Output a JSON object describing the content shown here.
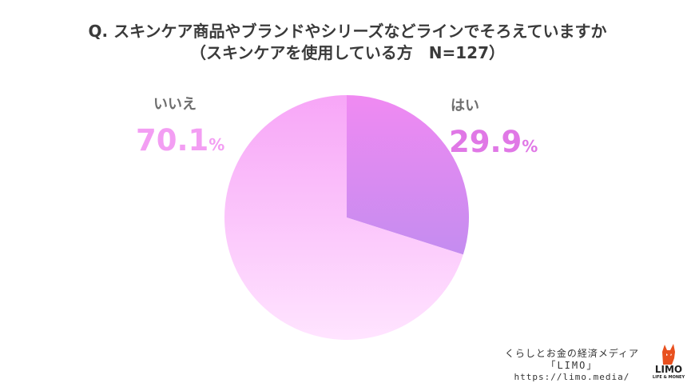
{
  "title": {
    "line1": "Q. スキンケア商品やブランドやシリーズなどラインでそろえていますか",
    "line2": "（スキンケアを使用している方　N=127）"
  },
  "chart_data": {
    "type": "pie",
    "start_angle_deg": 0,
    "direction": "clockwise",
    "slices": [
      {
        "label": "はい",
        "value": 29.9,
        "display": "29.9",
        "unit": "%",
        "color_start": "#f08af2",
        "color_end": "#c48cf0",
        "label_color": "#e078e6"
      },
      {
        "label": "いいえ",
        "value": 70.1,
        "display": "70.1",
        "unit": "%",
        "color_start": "#ffe4ff",
        "color_end": "#f7a6f7",
        "label_color": "#f39ef3"
      }
    ]
  },
  "footer": {
    "line1": "くらしとお金の経済メディア",
    "line2": "「LIMO」",
    "line3": "https://limo.media/"
  },
  "logo": {
    "name": "LIMO",
    "tagline": "LIFE & MONEY",
    "icon": "fox-icon",
    "color": "#e8501e"
  }
}
